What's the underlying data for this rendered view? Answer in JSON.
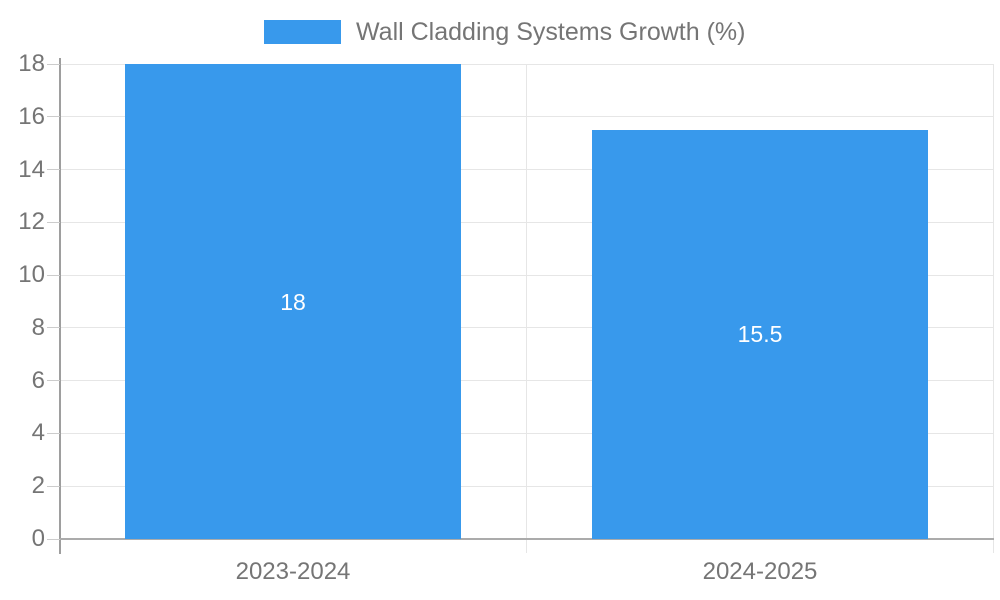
{
  "chart_data": {
    "type": "bar",
    "title": "Wall Cladding Systems Growth (%)",
    "legend": {
      "position": "top",
      "label": "Wall Cladding Systems Growth (%)",
      "swatch": "legend-swatch"
    },
    "categories": [
      "2023-2024",
      "2024-2025"
    ],
    "series": [
      {
        "name": "Wall Cladding Systems Growth (%)",
        "values": [
          18,
          15.5
        ],
        "color": "#3899ec"
      }
    ],
    "bar_value_labels": [
      "18",
      "15.5"
    ],
    "xlabel": "",
    "ylabel": "",
    "ylim": [
      0,
      18
    ],
    "yticks": [
      0,
      2,
      4,
      6,
      8,
      10,
      12,
      14,
      16,
      18
    ],
    "grid": true
  },
  "colors": {
    "bar": "#3899ec",
    "bar_label_text": "#ffffff",
    "axis_line": "#9e9e9e",
    "bottom_axis_line": "#ababab",
    "gridline": "#e6e6e6",
    "boundary_line": "#e6e6e6",
    "tick_mark": "#cccccc",
    "tick_text": "#757575",
    "legend_text": "#757575",
    "x_label_text": "#757575",
    "background": "#ffffff"
  }
}
